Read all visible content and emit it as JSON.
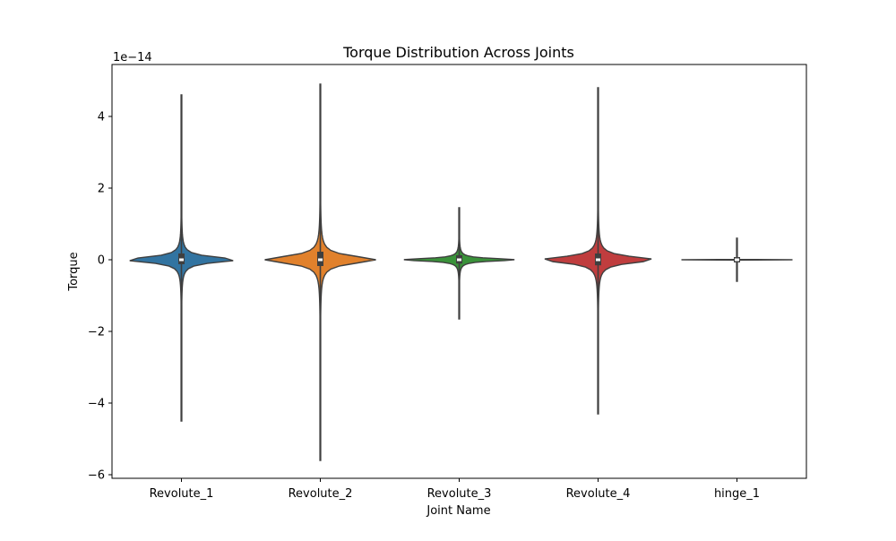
{
  "chart_data": {
    "type": "violin",
    "title": "Torque Distribution Across Joints",
    "xlabel": "Joint Name",
    "ylabel": "Torque",
    "y_offset_label": "1e−14",
    "y_scale": 1e-14,
    "ylim": [
      -6.1,
      5.45
    ],
    "y_ticks": [
      -6,
      -4,
      -2,
      0,
      2,
      4
    ],
    "y_tick_labels": [
      "−6",
      "−4",
      "−2",
      "0",
      "2",
      "4"
    ],
    "grid": false,
    "legend": "none",
    "categories": [
      "Revolute_1",
      "Revolute_2",
      "Revolute_3",
      "Revolute_4",
      "hinge_1"
    ],
    "series": [
      {
        "category": "Revolute_1",
        "min": -4.5,
        "max": 4.6,
        "q1": -0.05,
        "median": 0.0,
        "q3": 0.1,
        "half_width": 0.4,
        "body_spread": 0.12,
        "color": "#3274a1"
      },
      {
        "category": "Revolute_2",
        "min": -5.6,
        "max": 4.9,
        "q1": -0.1,
        "median": 0.0,
        "q3": 0.15,
        "half_width": 0.4,
        "body_spread": 0.16,
        "color": "#e1812c"
      },
      {
        "category": "Revolute_3",
        "min": -1.65,
        "max": 1.45,
        "q1": -0.03,
        "median": 0.0,
        "q3": 0.05,
        "half_width": 0.4,
        "body_spread": 0.06,
        "color": "#3a923a"
      },
      {
        "category": "Revolute_4",
        "min": -4.3,
        "max": 4.8,
        "q1": -0.08,
        "median": 0.0,
        "q3": 0.1,
        "half_width": 0.4,
        "body_spread": 0.14,
        "color": "#c03d3e"
      },
      {
        "category": "hinge_1",
        "min": 0.0,
        "max": 0.0,
        "q1": 0.0,
        "median": 0.0,
        "q3": 0.0,
        "half_width": 0.4,
        "body_spread": 0.0,
        "color": "#9372b2"
      }
    ]
  }
}
